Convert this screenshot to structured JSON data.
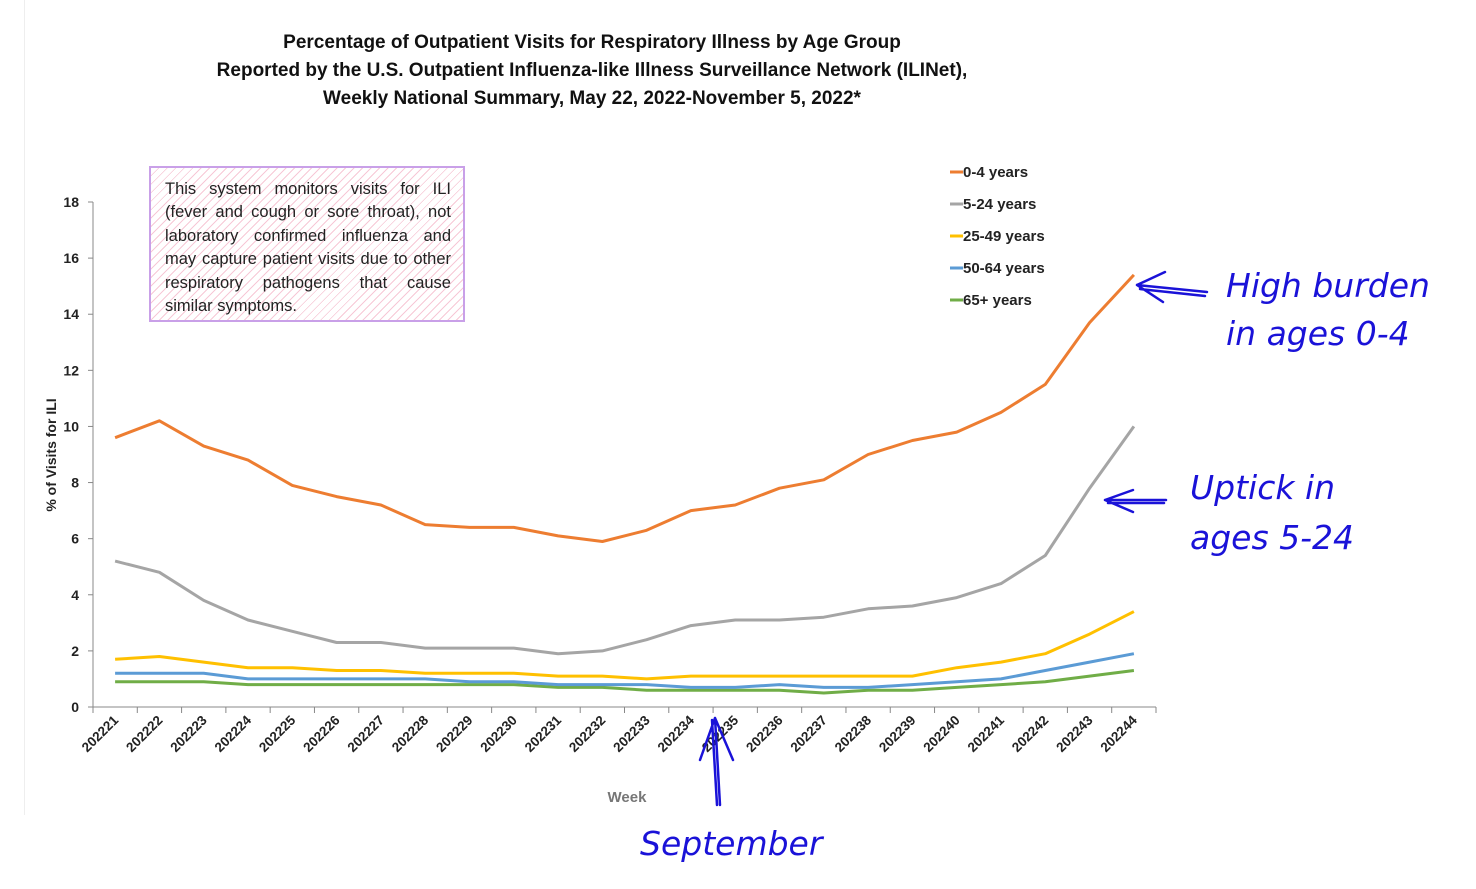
{
  "title_lines": [
    "Percentage of Outpatient Visits for Respiratory Illness by Age Group",
    "Reported by the U.S. Outpatient Influenza-like Illness Surveillance Network (ILINet),",
    "Weekly National Summary, May 22, 2022-November 5, 2022*"
  ],
  "note": "This system monitors visits for ILI (fever and cough or sore throat), not laboratory confirmed influenza and may capture patient visits due to other respiratory pathogens that cause similar symptoms.",
  "annotations": {
    "high_burden": [
      "High burden",
      "in ages 0-4"
    ],
    "uptick": [
      "Uptick in",
      "ages 5-24"
    ],
    "september": "September",
    "color": "#1a12d8"
  },
  "chart_data": {
    "type": "line",
    "title": "Percentage of Outpatient Visits for Respiratory Illness by Age Group",
    "xlabel": "Week",
    "ylabel": "% of Visits for ILI",
    "ylim": [
      0,
      18
    ],
    "yticks": [
      "0",
      "2",
      "4",
      "6",
      "8",
      "10",
      "12",
      "14",
      "16",
      "18"
    ],
    "legend_position": "top-right",
    "grid": false,
    "categories": [
      "202221",
      "202222",
      "202223",
      "202224",
      "202225",
      "202226",
      "202227",
      "202228",
      "202229",
      "202230",
      "202231",
      "202232",
      "202233",
      "202234",
      "202235",
      "202236",
      "202237",
      "202238",
      "202239",
      "202240",
      "202241",
      "202242",
      "202243",
      "202244"
    ],
    "series": [
      {
        "name": "0-4 years",
        "color": "#ed7d31",
        "values": [
          9.6,
          10.2,
          9.3,
          8.8,
          7.9,
          7.5,
          7.2,
          6.5,
          6.4,
          6.4,
          6.1,
          5.9,
          6.3,
          7.0,
          7.2,
          7.8,
          8.1,
          9.0,
          9.5,
          9.8,
          10.5,
          11.5,
          13.7,
          15.4
        ]
      },
      {
        "name": "5-24 years",
        "color": "#a5a5a5",
        "values": [
          5.2,
          4.8,
          3.8,
          3.1,
          2.7,
          2.3,
          2.3,
          2.1,
          2.1,
          2.1,
          1.9,
          2.0,
          2.4,
          2.9,
          3.1,
          3.1,
          3.2,
          3.5,
          3.6,
          3.9,
          4.4,
          5.4,
          7.8,
          10.0
        ]
      },
      {
        "name": "25-49 years",
        "color": "#ffc000",
        "values": [
          1.7,
          1.8,
          1.6,
          1.4,
          1.4,
          1.3,
          1.3,
          1.2,
          1.2,
          1.2,
          1.1,
          1.1,
          1.0,
          1.1,
          1.1,
          1.1,
          1.1,
          1.1,
          1.1,
          1.4,
          1.6,
          1.9,
          2.6,
          3.4
        ]
      },
      {
        "name": "50-64 years",
        "color": "#5b9bd5",
        "values": [
          1.2,
          1.2,
          1.2,
          1.0,
          1.0,
          1.0,
          1.0,
          1.0,
          0.9,
          0.9,
          0.8,
          0.8,
          0.8,
          0.7,
          0.7,
          0.8,
          0.7,
          0.7,
          0.8,
          0.9,
          1.0,
          1.3,
          1.6,
          1.9
        ]
      },
      {
        "name": "65+ years",
        "color": "#70ad47",
        "values": [
          0.9,
          0.9,
          0.9,
          0.8,
          0.8,
          0.8,
          0.8,
          0.8,
          0.8,
          0.8,
          0.7,
          0.7,
          0.6,
          0.6,
          0.6,
          0.6,
          0.5,
          0.6,
          0.6,
          0.7,
          0.8,
          0.9,
          1.1,
          1.3
        ]
      }
    ]
  }
}
